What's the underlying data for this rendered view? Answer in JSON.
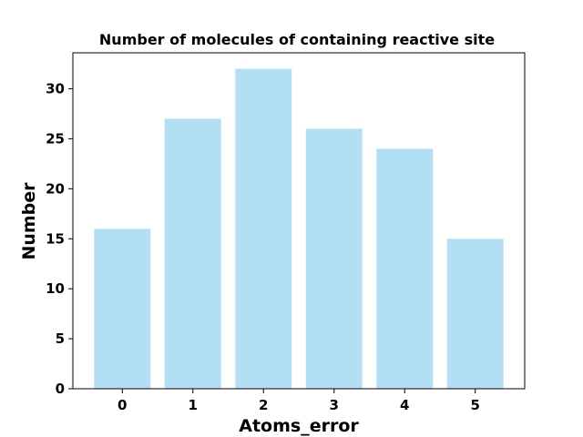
{
  "chart_data": {
    "type": "bar",
    "title": "Number of molecules of containing reactive site",
    "xlabel": "Atoms_error",
    "ylabel": "Number",
    "categories": [
      "0",
      "1",
      "2",
      "3",
      "4",
      "5"
    ],
    "values": [
      16,
      27,
      32,
      26,
      24,
      15
    ],
    "ylim": [
      0,
      33.6
    ],
    "yticks": [
      0,
      5,
      10,
      15,
      20,
      25,
      30
    ],
    "grid": false,
    "bar_color": "#b3dff4"
  }
}
